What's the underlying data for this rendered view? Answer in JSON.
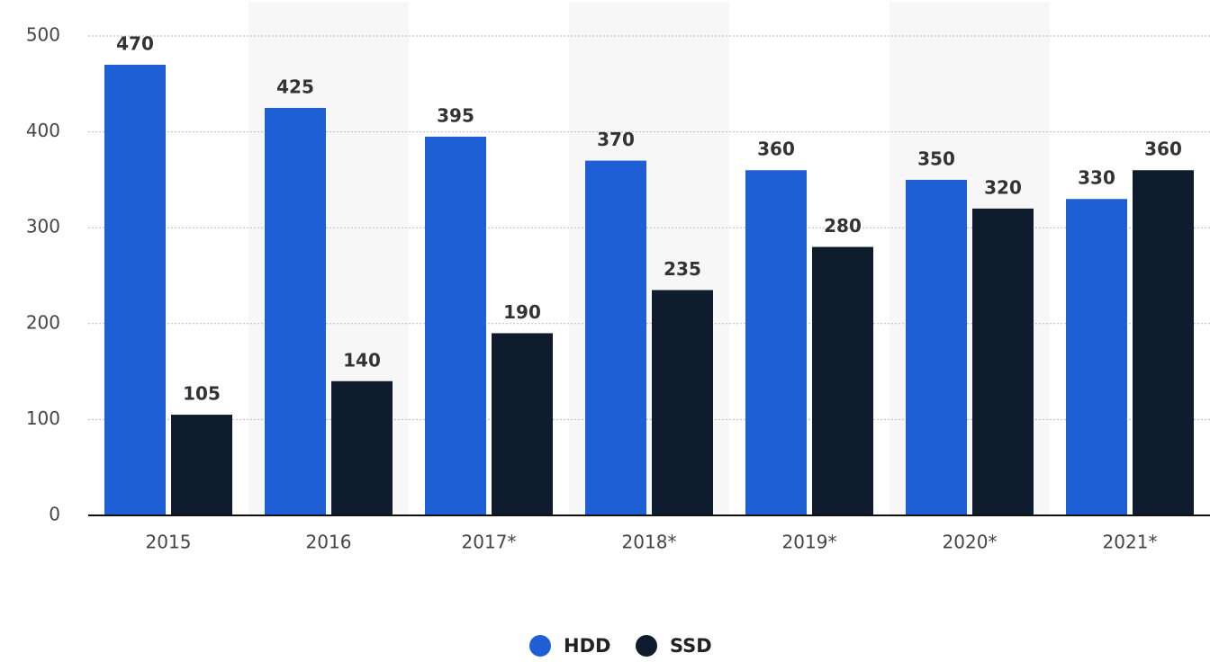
{
  "chart_data": {
    "type": "bar",
    "categories": [
      "2015",
      "2016",
      "2017*",
      "2018*",
      "2019*",
      "2020*",
      "2021*"
    ],
    "series": [
      {
        "name": "HDD",
        "color": "#1f5fd6",
        "values": [
          470,
          425,
          395,
          370,
          360,
          350,
          330
        ]
      },
      {
        "name": "SSD",
        "color": "#0f1c2e",
        "values": [
          105,
          140,
          190,
          235,
          280,
          320,
          360
        ]
      }
    ],
    "ylim": [
      0,
      500
    ],
    "yticks": [
      0,
      100,
      200,
      300,
      400,
      500
    ],
    "grid": true,
    "legend": "bottom"
  }
}
